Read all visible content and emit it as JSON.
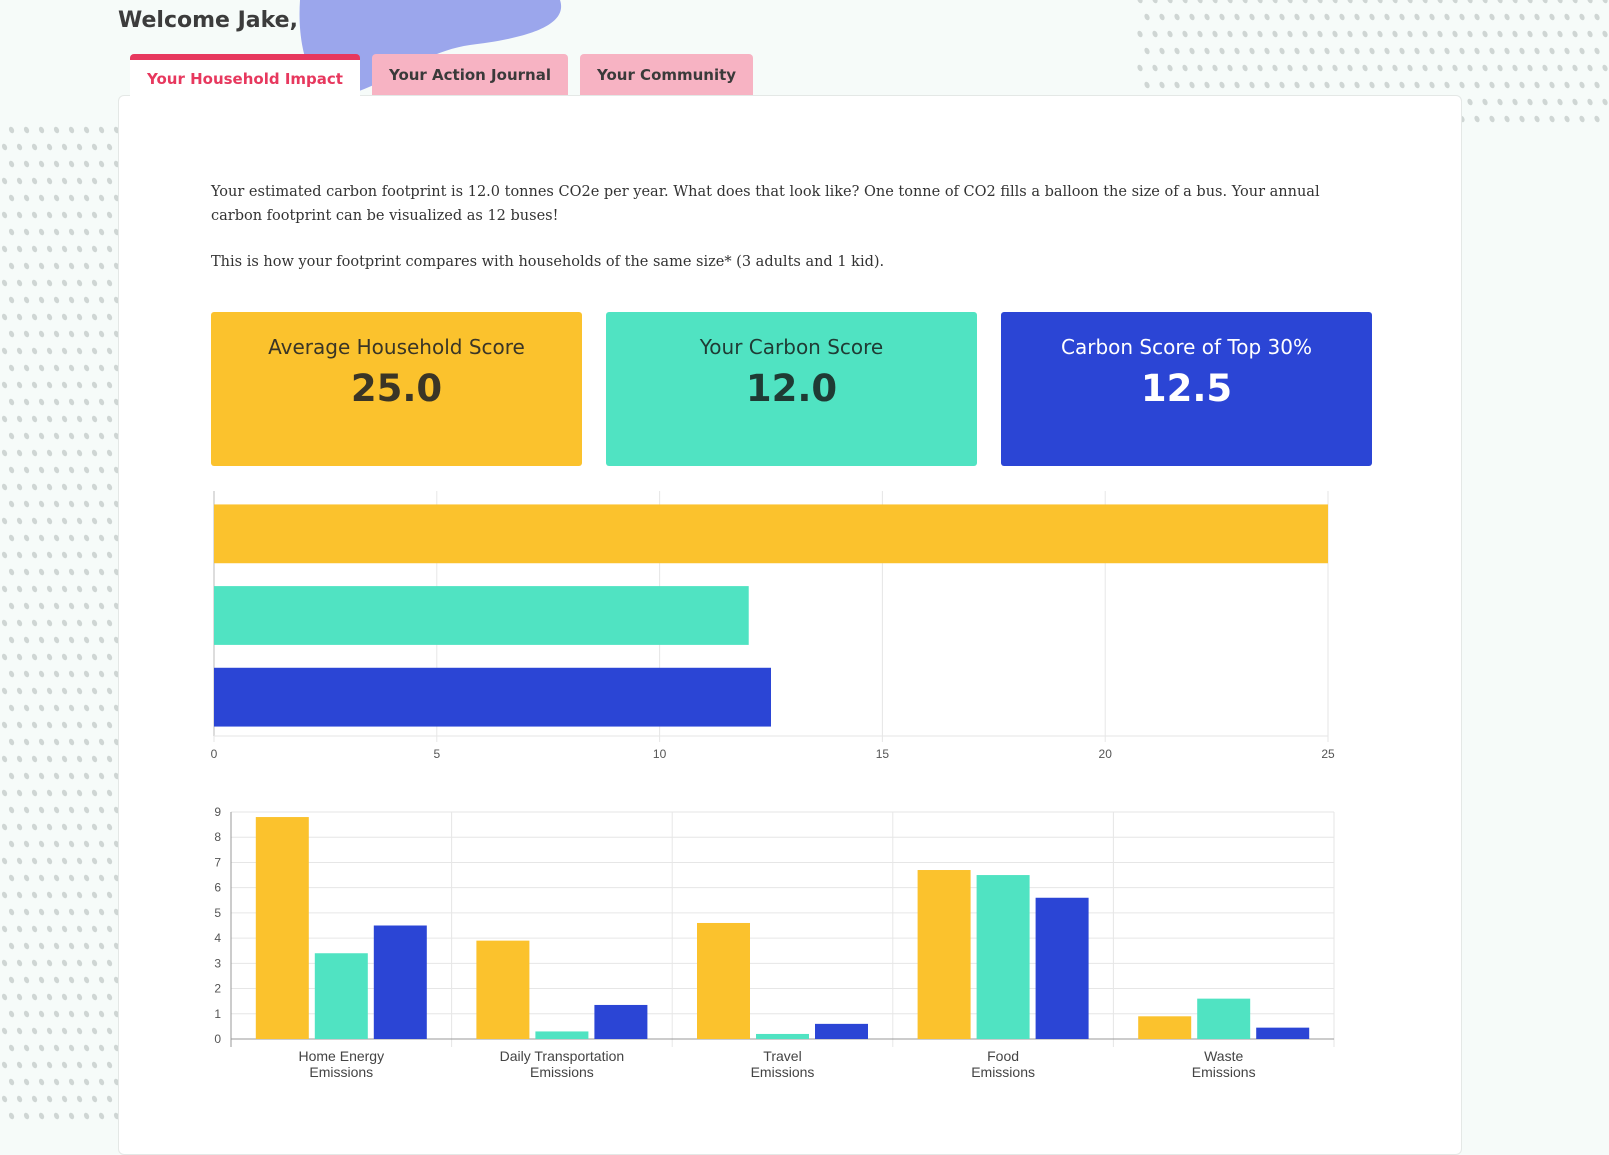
{
  "header": {
    "welcome": "Welcome Jake,"
  },
  "tabs": [
    {
      "label": "Your Household Impact",
      "active": true
    },
    {
      "label": "Your Action Journal",
      "active": false
    },
    {
      "label": "Your Community",
      "active": false
    }
  ],
  "intro": {
    "paragraph1": "Your estimated carbon footprint is 12.0 tonnes CO2e per year. What does that look like? One tonne of CO2 fills a balloon the size of a bus. Your annual carbon footprint can be visualized as 12 buses!",
    "paragraph2": "This is how your footprint compares with households of the same size* (3 adults and 1 kid)."
  },
  "score_cards": [
    {
      "label": "Average Household Score",
      "value": "25.0"
    },
    {
      "label": "Your Carbon Score",
      "value": "12.0"
    },
    {
      "label": "Carbon Score of Top 30%",
      "value": "12.5"
    }
  ],
  "colors": {
    "average": "#fbc22d",
    "yours": "#50e3c2",
    "top30": "#2b45d5",
    "accent": "#e7385e",
    "tab_inactive": "#f7b3c3"
  },
  "chart_data": [
    {
      "type": "bar",
      "orientation": "horizontal",
      "categories": [
        "Average Household",
        "Your Carbon Score",
        "Top 30%"
      ],
      "values": [
        25.0,
        12.0,
        12.5
      ],
      "xlim": [
        0,
        25
      ],
      "xticks": [
        0,
        5,
        10,
        15,
        20,
        25
      ],
      "grid": true
    },
    {
      "type": "bar",
      "orientation": "vertical",
      "categories": [
        [
          "Home Energy",
          "Emissions"
        ],
        [
          "Daily Transportation",
          "Emissions"
        ],
        [
          "Travel",
          "Emissions"
        ],
        [
          "Food",
          "Emissions"
        ],
        [
          "Waste",
          "Emissions"
        ]
      ],
      "series": [
        {
          "values": [
            8.8,
            3.9,
            4.6,
            6.7,
            0.9
          ]
        },
        {
          "values": [
            3.4,
            0.3,
            0.2,
            6.5,
            1.6
          ]
        },
        {
          "values": [
            4.5,
            1.35,
            0.6,
            5.6,
            0.45
          ]
        }
      ],
      "ylim": [
        0,
        9
      ],
      "yticks": [
        0,
        1,
        2,
        3,
        4,
        5,
        6,
        7,
        8,
        9
      ],
      "grid": true
    }
  ]
}
